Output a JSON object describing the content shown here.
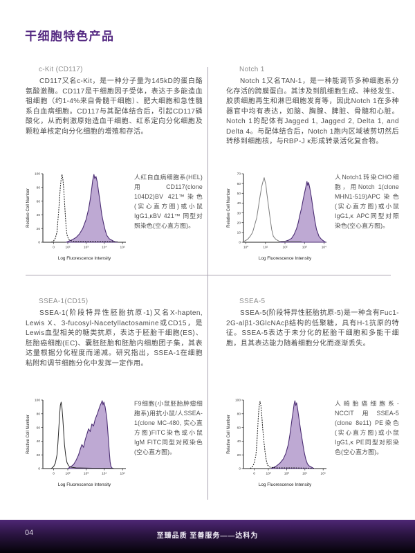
{
  "page": {
    "title": "干细胞特色产品",
    "page_number": "04",
    "footer_slogan": "至臻品质 至善服务——达科为"
  },
  "colors": {
    "accent_purple": "#552a82",
    "histogram_fill": "#b7a0ce",
    "histogram_stroke": "#4b2d73",
    "divider_gray": "#a9a2b1",
    "footer_gradient_top": "#4e2775",
    "footer_gradient_bottom": "#050309"
  },
  "sections": [
    {
      "title": "c-Kit (CD117)",
      "body": "CD117又名c-Kit，是一种分子量为145kD的蛋白酪氨酸激酶。CD117是干细胞因子受体，表达于多能造血祖细胞（约1-4%来自骨髓干细胞）、肥大细胞和急性髓系白血病细胞。CD117与其配体结合后，引起CD117磷酸化，从而刺激原始造血干细胞、红系定向分化细胞及颗粒单核定向分化细胞的增殖和存活。",
      "caption": "人红白血病细胞系(HEL)用CD117(clone 104D2)BV 421™染色(实心直方图)或小鼠IgG1,κBV 421™ 同型对照染色(空心直方图)。"
    },
    {
      "title": "Notch 1",
      "body": "Notch 1又名TAN-1，是一种能调节多种细胞系分化存活的跨膜蛋白。其涉及到肌细胞生成、神经发生、胶质细胞再生和淋巴细胞发育等，因此Notch 1在多种器官中均有表达，如脑、胸腺、脾脏、骨髓和心脏。Notch 1的配体有Jagged 1, Jagged 2, Delta 1, and Delta 4。与配体结合后，Notch 1胞内区域被剪切然后转移到细胞核，与RBP-J κ形成转录活化复合物。",
      "caption": "人Notch1转染CHO细胞，用Notch 1(clone MHN1-519)APC染色(实心直方图)或小鼠IgG1,κ APC同型对照染色(空心直方图)。"
    },
    {
      "title": "SSEA-1(CD15)",
      "body": "SSEA-1(阶段特异性胚胎抗原-1)又名X-hapten, Lewis X、3-fucosyl-Nacetyllactosamine或CD15，是Lewis血型相关的糖类抗原，表达于胚胎干细胞(ES)、胚胎癌细胞(EC)、囊胚胚胎和胚胎内细胞团子集，其表达量根据分化程度而递减。研究指出，SSEA-1在细胞粘附和调节细胞分化中发挥一定作用。",
      "caption": "F9细胞(小鼠胚胎肿瘤细胞系)用抗小鼠/人SSEA-1(clone MC-480, 实心直方图)FITC染色或小鼠IgM FITC同型对照染色(空心直方图)。"
    },
    {
      "title": "SSEA-5",
      "body": "SSEA-5(阶段特异性胚胎抗原-5)是一种含有Fuc1-2G-alβ1-3GlcNAcβ结构的低聚糖，具有H-1抗原的特征。SSEA-5表达于未分化的胚胎干细胞和多能干细胞，且其表达能力随着细胞分化而逐渐丢失。",
      "caption": "人畸胎癌细胞系-NCCIT用SSEA-5 (clone 8e11) PE染色(实心直方图)或小鼠IgG1,κ PE同型对照染色(空心直方图)。"
    }
  ],
  "chart_data": [
    {
      "type": "area",
      "title": "CD117 BV421 flow cytometry histogram (HEL cells)",
      "xlabel": "Log Fluorescence Intensity",
      "ylabel": "Relative Cell Number",
      "ymax": 100,
      "yticks": [
        0,
        20,
        40,
        60,
        80,
        100
      ],
      "xticks": [
        {
          "label": "0",
          "pos": 0.13
        },
        {
          "label": "10²",
          "pos": 0.3
        },
        {
          "label": "10³",
          "pos": 0.52
        },
        {
          "label": "10⁴",
          "pos": 0.74
        },
        {
          "label": "10⁵",
          "pos": 0.96
        }
      ],
      "series": [
        {
          "name": "mouse IgG1,κ BV421 isotype control (open)",
          "style": "dashed",
          "color": "#161616",
          "points": [
            [
              0.1,
              0
            ],
            [
              0.13,
              2
            ],
            [
              0.15,
              6
            ],
            [
              0.17,
              15
            ],
            [
              0.18,
              30
            ],
            [
              0.19,
              45
            ],
            [
              0.2,
              62
            ],
            [
              0.21,
              80
            ],
            [
              0.22,
              92
            ],
            [
              0.23,
              99
            ],
            [
              0.24,
              93
            ],
            [
              0.25,
              80
            ],
            [
              0.26,
              60
            ],
            [
              0.27,
              40
            ],
            [
              0.28,
              22
            ],
            [
              0.29,
              11
            ],
            [
              0.31,
              4
            ],
            [
              0.34,
              2
            ],
            [
              0.4,
              1
            ],
            [
              0.6,
              1
            ],
            [
              0.8,
              1
            ],
            [
              0.9,
              0.5
            ]
          ]
        },
        {
          "name": "CD117 (clone 104D2) BV421 (filled)",
          "style": "filled",
          "points": [
            [
              0.28,
              0
            ],
            [
              0.32,
              2
            ],
            [
              0.36,
              4
            ],
            [
              0.4,
              7
            ],
            [
              0.44,
              12
            ],
            [
              0.48,
              20
            ],
            [
              0.52,
              33
            ],
            [
              0.55,
              48
            ],
            [
              0.57,
              62
            ],
            [
              0.59,
              80
            ],
            [
              0.6,
              90
            ],
            [
              0.615,
              99
            ],
            [
              0.625,
              93
            ],
            [
              0.64,
              96
            ],
            [
              0.655,
              88
            ],
            [
              0.67,
              75
            ],
            [
              0.69,
              58
            ],
            [
              0.71,
              40
            ],
            [
              0.73,
              28
            ],
            [
              0.75,
              18
            ],
            [
              0.77,
              10
            ],
            [
              0.8,
              5
            ],
            [
              0.83,
              3
            ],
            [
              0.86,
              1
            ],
            [
              0.9,
              0
            ]
          ]
        }
      ]
    },
    {
      "type": "area",
      "title": "Notch 1 APC flow cytometry histogram (CHO transfectants)",
      "xlabel": "Log Fluorescence Intensity",
      "ylabel": "Relative Cell Number",
      "ymax": 70,
      "yticks": [
        0,
        10,
        20,
        30,
        40,
        50,
        60,
        70
      ],
      "xticks": [
        {
          "label": "10⁰",
          "pos": 0.03
        },
        {
          "label": "10¹",
          "pos": 0.265
        },
        {
          "label": "10²",
          "pos": 0.5
        },
        {
          "label": "10³",
          "pos": 0.735
        },
        {
          "label": "10⁴",
          "pos": 0.97
        }
      ],
      "series": [
        {
          "name": "mouse IgG1,κ APC isotype control (open)",
          "style": "solid",
          "color": "#7d7d7d",
          "points": [
            [
              0.01,
              1
            ],
            [
              0.05,
              3
            ],
            [
              0.08,
              6
            ],
            [
              0.11,
              10
            ],
            [
              0.13,
              16
            ],
            [
              0.16,
              25
            ],
            [
              0.18,
              36
            ],
            [
              0.2,
              47
            ],
            [
              0.22,
              57
            ],
            [
              0.235,
              62
            ],
            [
              0.25,
              66
            ],
            [
              0.26,
              62
            ],
            [
              0.27,
              59
            ],
            [
              0.28,
              51
            ],
            [
              0.3,
              38
            ],
            [
              0.32,
              25
            ],
            [
              0.34,
              13
            ],
            [
              0.36,
              6
            ],
            [
              0.39,
              3
            ],
            [
              0.43,
              1
            ],
            [
              0.55,
              1
            ],
            [
              0.7,
              1
            ]
          ]
        },
        {
          "name": "Notch 1 (clone MHN1-519) APC (filled)",
          "style": "filled",
          "points": [
            [
              0.44,
              0
            ],
            [
              0.5,
              1
            ],
            [
              0.54,
              2
            ],
            [
              0.58,
              4
            ],
            [
              0.61,
              8
            ],
            [
              0.64,
              14
            ],
            [
              0.66,
              20
            ],
            [
              0.68,
              28
            ],
            [
              0.7,
              35
            ],
            [
              0.72,
              44
            ],
            [
              0.74,
              52
            ],
            [
              0.755,
              58
            ],
            [
              0.765,
              62
            ],
            [
              0.775,
              58
            ],
            [
              0.785,
              61
            ],
            [
              0.8,
              55
            ],
            [
              0.82,
              45
            ],
            [
              0.84,
              33
            ],
            [
              0.86,
              22
            ],
            [
              0.88,
              13
            ],
            [
              0.91,
              6
            ],
            [
              0.94,
              3
            ],
            [
              0.97,
              1
            ],
            [
              0.99,
              0
            ]
          ]
        }
      ]
    },
    {
      "type": "area",
      "title": "SSEA-1 FITC flow cytometry histogram (F9 cells)",
      "xlabel": "Log Fluorescence Intensity",
      "ylabel": "Relative Cell Number",
      "ymax": 100,
      "yticks": [
        0,
        20,
        40,
        60,
        80,
        100
      ],
      "xticks": [
        {
          "label": "0",
          "pos": 0.13
        },
        {
          "label": "10²",
          "pos": 0.3
        },
        {
          "label": "10³",
          "pos": 0.52
        },
        {
          "label": "10⁴",
          "pos": 0.74
        },
        {
          "label": "10⁵",
          "pos": 0.96
        }
      ],
      "series": [
        {
          "name": "mouse IgM FITC isotype control (open)",
          "style": "solid",
          "color": "#262626",
          "points": [
            [
              0.1,
              0
            ],
            [
              0.13,
              3
            ],
            [
              0.15,
              8
            ],
            [
              0.17,
              20
            ],
            [
              0.18,
              35
            ],
            [
              0.19,
              55
            ],
            [
              0.2,
              75
            ],
            [
              0.21,
              92
            ],
            [
              0.22,
              97
            ],
            [
              0.23,
              89
            ],
            [
              0.24,
              73
            ],
            [
              0.25,
              54
            ],
            [
              0.26,
              35
            ],
            [
              0.275,
              19
            ],
            [
              0.29,
              9
            ],
            [
              0.31,
              4
            ],
            [
              0.34,
              2
            ],
            [
              0.4,
              1
            ],
            [
              0.6,
              0.5
            ],
            [
              0.85,
              0.5
            ]
          ]
        },
        {
          "name": "SSEA-1 (clone MC-480) FITC (filled)",
          "style": "filled",
          "points": [
            [
              0.3,
              0
            ],
            [
              0.34,
              3
            ],
            [
              0.37,
              6
            ],
            [
              0.4,
              12
            ],
            [
              0.43,
              20
            ],
            [
              0.45,
              28
            ],
            [
              0.47,
              35
            ],
            [
              0.49,
              31
            ],
            [
              0.51,
              42
            ],
            [
              0.53,
              50
            ],
            [
              0.55,
              58
            ],
            [
              0.57,
              54
            ],
            [
              0.59,
              65
            ],
            [
              0.61,
              62
            ],
            [
              0.63,
              72
            ],
            [
              0.65,
              78
            ],
            [
              0.67,
              85
            ],
            [
              0.69,
              92
            ],
            [
              0.705,
              96
            ],
            [
              0.715,
              99
            ],
            [
              0.725,
              93
            ],
            [
              0.735,
              97
            ],
            [
              0.75,
              90
            ],
            [
              0.77,
              74
            ],
            [
              0.785,
              50
            ],
            [
              0.8,
              25
            ],
            [
              0.81,
              10
            ],
            [
              0.82,
              3
            ],
            [
              0.84,
              0
            ]
          ]
        }
      ]
    },
    {
      "type": "area",
      "title": "SSEA-5 PE flow cytometry histogram (NCCIT cells)",
      "xlabel": "Log Fluorescence Intensity",
      "ylabel": "Relative Cell Number",
      "ymax": 100,
      "yticks": [
        0,
        20,
        40,
        60,
        80,
        100
      ],
      "xticks": [
        {
          "label": "0",
          "pos": 0.13
        },
        {
          "label": "10²",
          "pos": 0.3
        },
        {
          "label": "10³",
          "pos": 0.52
        },
        {
          "label": "10⁴",
          "pos": 0.74
        },
        {
          "label": "10⁵",
          "pos": 0.96
        }
      ],
      "series": [
        {
          "name": "mouse IgG1,κ PE isotype control (open)",
          "style": "dashed",
          "color": "#161616",
          "points": [
            [
              0.08,
              0
            ],
            [
              0.11,
              3
            ],
            [
              0.13,
              8
            ],
            [
              0.15,
              20
            ],
            [
              0.16,
              35
            ],
            [
              0.17,
              55
            ],
            [
              0.18,
              78
            ],
            [
              0.19,
              92
            ],
            [
              0.2,
              98
            ],
            [
              0.21,
              92
            ],
            [
              0.22,
              79
            ],
            [
              0.23,
              61
            ],
            [
              0.245,
              41
            ],
            [
              0.26,
              24
            ],
            [
              0.275,
              12
            ],
            [
              0.29,
              5
            ],
            [
              0.32,
              2
            ],
            [
              0.4,
              1
            ],
            [
              0.6,
              1
            ],
            [
              0.85,
              0.5
            ]
          ]
        },
        {
          "name": "SSEA-5 (clone 8e11) PE (filled)",
          "style": "filled",
          "points": [
            [
              0.33,
              0
            ],
            [
              0.37,
              2
            ],
            [
              0.4,
              4
            ],
            [
              0.44,
              8
            ],
            [
              0.48,
              14
            ],
            [
              0.51,
              22
            ],
            [
              0.54,
              35
            ],
            [
              0.56,
              50
            ],
            [
              0.58,
              68
            ],
            [
              0.6,
              85
            ],
            [
              0.61,
              94
            ],
            [
              0.62,
              99
            ],
            [
              0.63,
              92
            ],
            [
              0.64,
              96
            ],
            [
              0.655,
              85
            ],
            [
              0.67,
              72
            ],
            [
              0.69,
              55
            ],
            [
              0.71,
              40
            ],
            [
              0.73,
              25
            ],
            [
              0.75,
              14
            ],
            [
              0.77,
              7
            ],
            [
              0.79,
              4
            ],
            [
              0.82,
              2
            ],
            [
              0.85,
              0
            ]
          ]
        }
      ]
    }
  ]
}
